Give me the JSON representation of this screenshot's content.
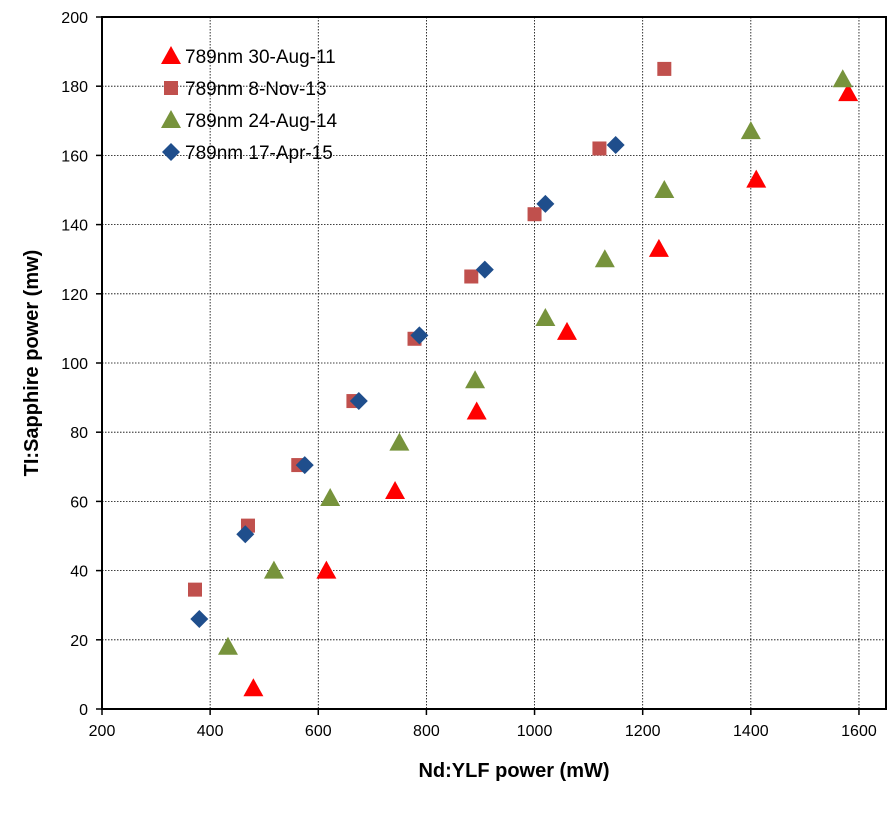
{
  "chart_data": {
    "type": "scatter",
    "xlabel": "Nd:YLF power (mW)",
    "ylabel": "TI:Sapphire power (mw)",
    "xlim": [
      200,
      1650
    ],
    "ylim": [
      0,
      200
    ],
    "x_ticks": [
      "200",
      "400",
      "600",
      "800",
      "1000",
      "1200",
      "1400",
      "1600"
    ],
    "y_ticks": [
      "0",
      "20",
      "40",
      "60",
      "80",
      "100",
      "120",
      "140",
      "160",
      "180",
      "200"
    ],
    "grid": true,
    "legend_position": "top-left",
    "series": [
      {
        "name": "789nm 30-Aug-11",
        "marker": "triangle",
        "color": "#ff0000",
        "points": [
          [
            480,
            6
          ],
          [
            615,
            40
          ],
          [
            742,
            63
          ],
          [
            893,
            86
          ],
          [
            1060,
            109
          ],
          [
            1230,
            133
          ],
          [
            1410,
            153
          ],
          [
            1580,
            178
          ]
        ]
      },
      {
        "name": "789nm 8-Nov-13",
        "marker": "square",
        "color": "#c0504d",
        "points": [
          [
            372,
            34.5
          ],
          [
            470,
            53
          ],
          [
            563,
            70.5
          ],
          [
            665,
            89
          ],
          [
            778,
            107
          ],
          [
            883,
            125
          ],
          [
            1000,
            143
          ],
          [
            1120,
            162
          ],
          [
            1240,
            185
          ]
        ]
      },
      {
        "name": "789nm 24-Aug-14",
        "marker": "triangle",
        "color": "#77933c",
        "points": [
          [
            433,
            18
          ],
          [
            518,
            40
          ],
          [
            622,
            61
          ],
          [
            750,
            77
          ],
          [
            890,
            95
          ],
          [
            1020,
            113
          ],
          [
            1130,
            130
          ],
          [
            1240,
            150
          ],
          [
            1400,
            167
          ],
          [
            1570,
            182
          ]
        ]
      },
      {
        "name": "789nm 17-Apr-15",
        "marker": "diamond",
        "color": "#1f4e8c",
        "points": [
          [
            380,
            26
          ],
          [
            465,
            50.5
          ],
          [
            575,
            70.5
          ],
          [
            675,
            89
          ],
          [
            787,
            108
          ],
          [
            908,
            127
          ],
          [
            1020,
            146
          ],
          [
            1150,
            163
          ]
        ]
      }
    ]
  }
}
